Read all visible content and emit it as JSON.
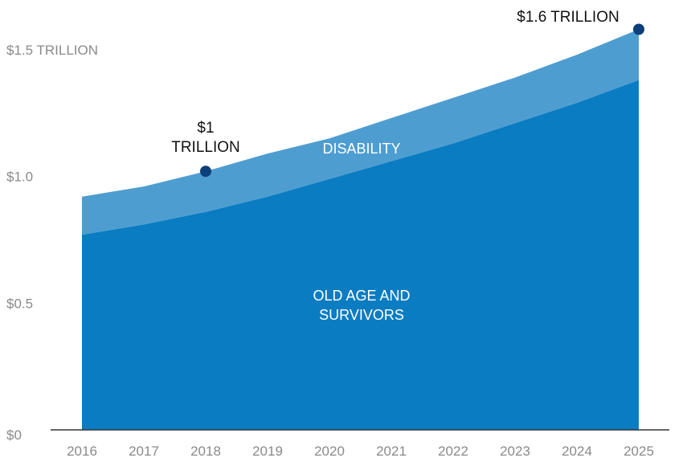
{
  "chart_data": {
    "type": "area",
    "stacked": true,
    "x": [
      2016,
      2017,
      2018,
      2019,
      2020,
      2021,
      2022,
      2023,
      2024,
      2025
    ],
    "x_tick_labels": [
      "2016",
      "2017",
      "2018",
      "2019",
      "2020",
      "2021",
      "2022",
      "2023",
      "2024",
      "2025"
    ],
    "ylim": [
      0,
      1.6
    ],
    "y_tick_labels": [
      {
        "value": 0,
        "label": "$0"
      },
      {
        "value": 0.5,
        "label": "$0.5"
      },
      {
        "value": 1.0,
        "label": "$1.0"
      },
      {
        "value": 1.5,
        "label": "$1.5 TRILLION"
      }
    ],
    "grid": false,
    "legend": "none",
    "series": [
      {
        "name": "OLD AGE AND SURVIVORS",
        "label_lines": [
          "OLD AGE AND",
          "SURVIVORS"
        ],
        "color": "#0a7cc2",
        "values": [
          0.77,
          0.81,
          0.86,
          0.92,
          0.99,
          1.06,
          1.13,
          1.21,
          1.29,
          1.38
        ]
      },
      {
        "name": "DISABILITY",
        "label_lines": [
          "DISABILITY"
        ],
        "color": "#4e9dd1",
        "values": [
          0.15,
          0.15,
          0.16,
          0.17,
          0.16,
          0.17,
          0.18,
          0.18,
          0.19,
          0.2
        ]
      }
    ],
    "annotations": [
      {
        "x": 2018,
        "y": 1.02,
        "lines": [
          "$1",
          "TRILLION"
        ],
        "marker_color": "#0d3f7a"
      },
      {
        "x": 2025,
        "y": 1.58,
        "lines": [
          "$1.6 TRILLION"
        ],
        "marker_color": "#0d3f7a"
      }
    ],
    "axis_color": "#333333"
  }
}
